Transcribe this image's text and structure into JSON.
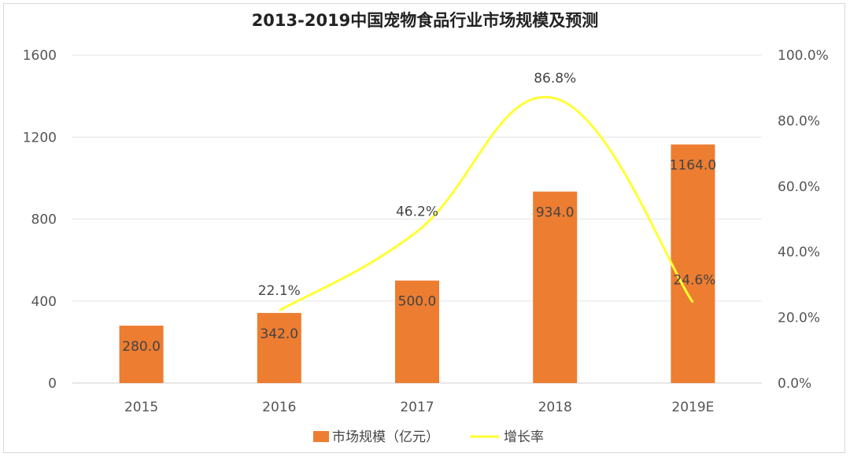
{
  "chart_data": {
    "type": "bar",
    "title": "2013-2019中国宠物食品行业市场规模及预测",
    "categories": [
      "2015",
      "2016",
      "2017",
      "2018",
      "2019E"
    ],
    "series": [
      {
        "name": "市场规模（亿元）",
        "type": "bar",
        "axis": "left",
        "color": "#ED7D31",
        "values": [
          280.0,
          342.0,
          500.0,
          934.0,
          1164.0
        ],
        "labels": [
          "280.0",
          "342.0",
          "500.0",
          "934.0",
          "1164.0"
        ]
      },
      {
        "name": "增长率",
        "type": "line",
        "axis": "right",
        "color": "#FFFF33",
        "values": [
          null,
          22.1,
          46.2,
          86.8,
          24.6
        ],
        "labels": [
          "",
          "22.1%",
          "46.2%",
          "86.8%",
          "24.6%"
        ]
      }
    ],
    "left_axis": {
      "ylim": [
        0,
        1600
      ],
      "ticks": [
        "0",
        "400",
        "800",
        "1200",
        "1600"
      ]
    },
    "right_axis": {
      "ylim": [
        0,
        100
      ],
      "ticks": [
        "0.0%",
        "20.0%",
        "40.0%",
        "60.0%",
        "80.0%",
        "100.0%"
      ]
    },
    "grid": true,
    "legend": "bottom"
  }
}
